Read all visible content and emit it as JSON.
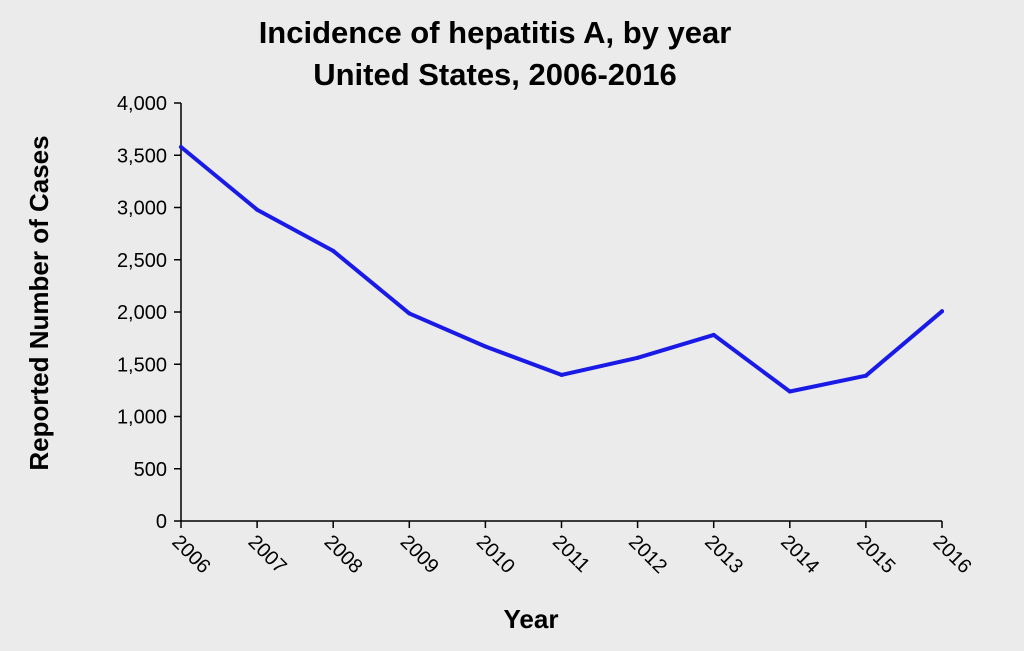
{
  "chart_data": {
    "type": "line",
    "title": "Incidence of hepatitis A, by year",
    "subtitle": "United States, 2006-2016",
    "xlabel": "Year",
    "ylabel": "Reported Number of Cases",
    "categories": [
      "2006",
      "2007",
      "2008",
      "2009",
      "2010",
      "2011",
      "2012",
      "2013",
      "2014",
      "2015",
      "2016"
    ],
    "values": [
      3579,
      2979,
      2585,
      1987,
      1670,
      1398,
      1562,
      1781,
      1239,
      1390,
      2007
    ],
    "ylim": [
      0,
      4000
    ],
    "yticks": [
      "0",
      "500",
      "1,000",
      "1,500",
      "2,000",
      "2,500",
      "3,000",
      "3,500",
      "4,000"
    ],
    "ytick_values": [
      0,
      500,
      1000,
      1500,
      2000,
      2500,
      3000,
      3500,
      4000
    ],
    "grid": false,
    "line_color": "#1a1ae6"
  }
}
